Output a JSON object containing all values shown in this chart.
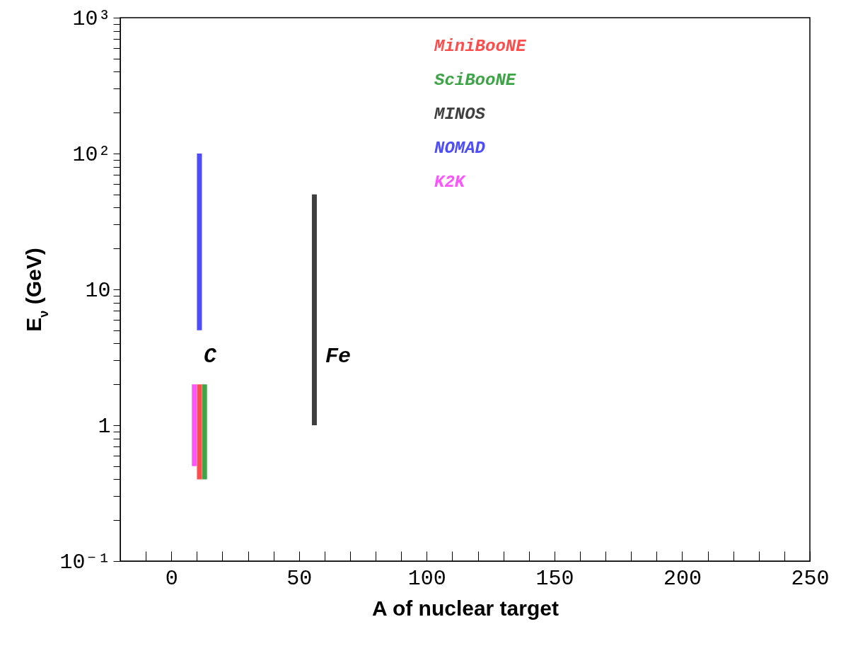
{
  "chart_data": {
    "type": "line",
    "xlabel": "A of nuclear target",
    "ylabel": "E$_{ν}$  (GeV)",
    "log": "y",
    "legend": "top",
    "line_style": "solid",
    "xlim": [
      -20,
      250
    ],
    "xticks": [
      {
        "value": -10,
        "label": null
      },
      0,
      {
        "value": 10,
        "label": null
      },
      {
        "value": 20,
        "label": null
      },
      {
        "value": 30,
        "label": null
      },
      {
        "value": 40,
        "label": null
      },
      50,
      {
        "value": 60,
        "label": null
      },
      {
        "value": 70,
        "label": null
      },
      {
        "value": 80,
        "label": null
      },
      {
        "value": 90,
        "label": null
      },
      100,
      {
        "value": 110,
        "label": null
      },
      {
        "value": 120,
        "label": null
      },
      {
        "value": 130,
        "label": null
      },
      {
        "value": 140,
        "label": null
      },
      150,
      {
        "value": 160,
        "label": null
      },
      {
        "value": 170,
        "label": null
      },
      {
        "value": 180,
        "label": null
      },
      {
        "value": 190,
        "label": null
      },
      200,
      {
        "value": 210,
        "label": null
      },
      {
        "value": 220,
        "label": null
      },
      {
        "value": 230,
        "label": null
      },
      {
        "value": 240,
        "label": null
      },
      250
    ],
    "ylim": [
      0.1,
      1000
    ],
    "yticks": [
      {
        "value": 0.1,
        "label": "10⁻¹"
      },
      {
        "value": 0.2,
        "label": null
      },
      {
        "value": 0.3,
        "label": null
      },
      {
        "value": 0.4,
        "label": null
      },
      {
        "value": 0.5,
        "label": null
      },
      {
        "value": 0.6,
        "label": null
      },
      {
        "value": 0.7,
        "label": null
      },
      {
        "value": 0.8,
        "label": null
      },
      {
        "value": 0.9,
        "label": null
      },
      1,
      {
        "value": 2,
        "label": null
      },
      {
        "value": 3,
        "label": null
      },
      {
        "value": 4,
        "label": null
      },
      {
        "value": 5,
        "label": null
      },
      {
        "value": 6,
        "label": null
      },
      {
        "value": 7,
        "label": null
      },
      {
        "value": 8,
        "label": null
      },
      {
        "value": 9,
        "label": null
      },
      10,
      {
        "value": 20,
        "label": null
      },
      {
        "value": 30,
        "label": null
      },
      {
        "value": 40,
        "label": null
      },
      {
        "value": 50,
        "label": null
      },
      {
        "value": 60,
        "label": null
      },
      {
        "value": 70,
        "label": null
      },
      {
        "value": 80,
        "label": null
      },
      {
        "value": 90,
        "label": null
      },
      {
        "value": 100,
        "label": "10²"
      },
      {
        "value": 200,
        "label": null
      },
      {
        "value": 300,
        "label": null
      },
      {
        "value": 400,
        "label": null
      },
      {
        "value": 500,
        "label": null
      },
      {
        "value": 600,
        "label": null
      },
      {
        "value": 700,
        "label": null
      },
      {
        "value": 800,
        "label": null
      },
      {
        "value": 900,
        "label": null
      },
      {
        "value": 1000,
        "label": "10³"
      }
    ],
    "series": [
      {
        "name": "MiniBooNE",
        "color": "#ff4d4d",
        "x": [
          11,
          11
        ],
        "values": [
          0.4,
          2
        ]
      },
      {
        "name": "SciBooNE",
        "color": "#3fa447",
        "x": [
          13,
          13
        ],
        "values": [
          0.4,
          2
        ]
      },
      {
        "name": "MINOS",
        "color": "#404040",
        "x": [
          56,
          56
        ],
        "values": [
          1,
          50
        ]
      },
      {
        "name": "NOMAD",
        "color": "#4d4dff",
        "x": [
          11,
          11
        ],
        "values": [
          5,
          100
        ]
      },
      {
        "name": "K2K",
        "color": "#ff55ff",
        "x": [
          9,
          9
        ],
        "values": [
          0.5,
          2
        ]
      }
    ],
    "annotations": [
      "C",
      "Fe"
    ]
  }
}
